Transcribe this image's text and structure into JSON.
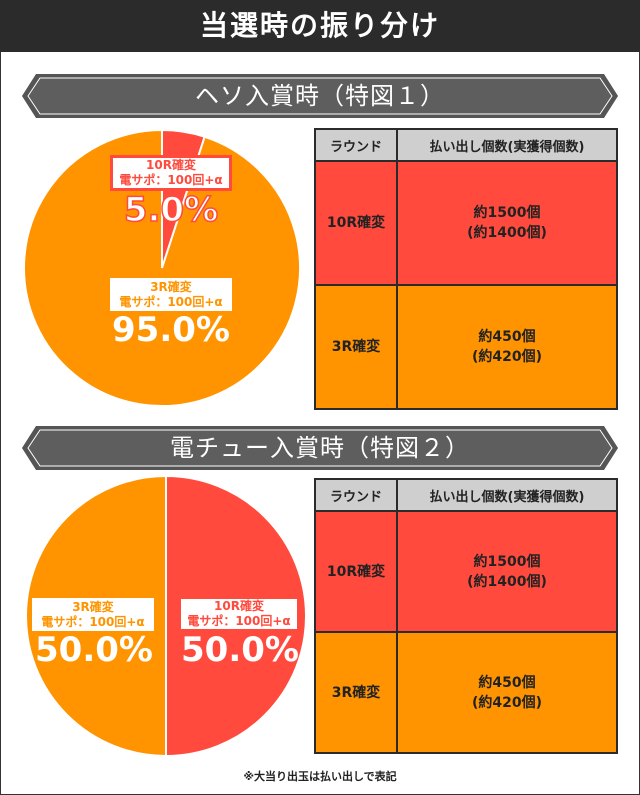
{
  "title": "当選時の振り分け",
  "colors": {
    "red": "#ff4a3d",
    "orange": "#ff9400",
    "header_gray": "#cfcfcf",
    "dark": "#2b2b2b"
  },
  "sections": [
    {
      "title": "ヘソ入賞時（特図１）",
      "pie": [
        {
          "line1": "10R確変",
          "line2": "電サポ：100回+α",
          "pct": "5.0%"
        },
        {
          "line1": "3R確変",
          "line2": "電サポ：100回+α",
          "pct": "95.0%"
        }
      ],
      "table": {
        "headers": [
          "ラウンド",
          "払い出し個数(実獲得個数)"
        ],
        "rows": [
          {
            "round": "10R確変",
            "payout": "約1500個",
            "actual": "(約1400個)"
          },
          {
            "round": "3R確変",
            "payout": "約450個",
            "actual": "(約420個)"
          }
        ]
      }
    },
    {
      "title": "電チュー入賞時（特図２）",
      "pie": [
        {
          "line1": "10R確変",
          "line2": "電サポ：100回+α",
          "pct": "50.0%"
        },
        {
          "line1": "3R確変",
          "line2": "電サポ：100回+α",
          "pct": "50.0%"
        }
      ],
      "table": {
        "headers": [
          "ラウンド",
          "払い出し個数(実獲得個数)"
        ],
        "rows": [
          {
            "round": "10R確変",
            "payout": "約1500個",
            "actual": "(約1400個)"
          },
          {
            "round": "3R確変",
            "payout": "約450個",
            "actual": "(約420個)"
          }
        ]
      }
    }
  ],
  "chart_data": [
    {
      "type": "pie",
      "categories": [
        "10R確変 電サポ：100回+α",
        "3R確変 電サポ：100回+α"
      ],
      "values": [
        5.0,
        95.0
      ],
      "title": "ヘソ入賞時（特図１）"
    },
    {
      "type": "pie",
      "categories": [
        "10R確変 電サポ：100回+α",
        "3R確変 電サポ：100回+α"
      ],
      "values": [
        50.0,
        50.0
      ],
      "title": "電チュー入賞時（特図２）"
    }
  ],
  "note": "※大当り出玉は払い出しで表記"
}
